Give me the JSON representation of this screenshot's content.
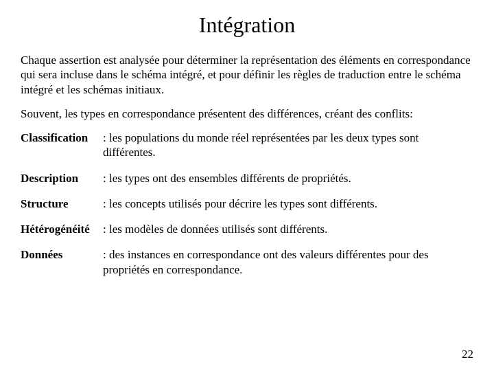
{
  "title": "Intégration",
  "paragraph1": "Chaque assertion est analysée pour déterminer la représentation des éléments en correspondance qui sera incluse dans le schéma intégré, et pour définir les règles de traduction entre le schéma intégré et les schémas initiaux.",
  "paragraph2": "Souvent, les types en correspondance présentent des différences, créant des conflits:",
  "definitions": {
    "classification": {
      "term": "Classification",
      "text": ": les populations du monde réel représentées par les deux types sont différentes."
    },
    "description": {
      "term": "Description",
      "text": ": les types ont des ensembles différents de propriétés."
    },
    "structure": {
      "term": "Structure",
      "text": ": les concepts utilisés pour décrire les types sont différents."
    },
    "heterogeneite": {
      "term": "Hétérogénéité",
      "text": ": les modèles de données utilisés sont différents."
    },
    "donnees": {
      "term": "Données",
      "text": ": des instances en correspondance ont des valeurs différentes pour des propriétés en correspondance."
    }
  },
  "page_number": "22"
}
